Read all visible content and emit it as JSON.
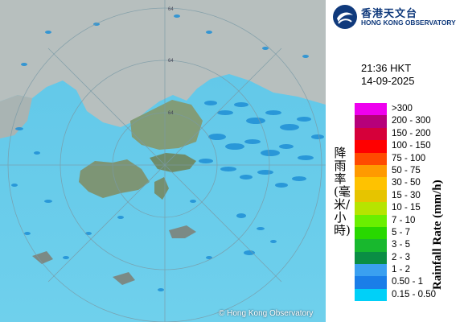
{
  "organization": {
    "name_zh": "香港天文台",
    "name_en": "HONG KONG OBSERVATORY"
  },
  "time": "21:36 HKT",
  "date": "14-09-2025",
  "title_zh": "降雨率(毫米/小時)",
  "title_en": "Rainfall Rate (mm/h)",
  "credit": "© Hong Kong Observatory",
  "range_labels": [
    "64",
    "64",
    "64"
  ],
  "legend": [
    {
      "label": ">300",
      "color": "#ee00ee"
    },
    {
      "label": "200 - 300",
      "color": "#b6007a"
    },
    {
      "label": "150 - 200",
      "color": "#d6003a"
    },
    {
      "label": "100 - 150",
      "color": "#ff0000"
    },
    {
      "label": "75 - 100",
      "color": "#ff4a00"
    },
    {
      "label": "50 - 75",
      "color": "#ff9a00"
    },
    {
      "label": "30 - 50",
      "color": "#ffc200"
    },
    {
      "label": "15 - 30",
      "color": "#e6c400"
    },
    {
      "label": "10 - 15",
      "color": "#b6e400"
    },
    {
      "label": "7 - 10",
      "color": "#6aef00"
    },
    {
      "label": "5 - 7",
      "color": "#28d800"
    },
    {
      "label": "3 - 5",
      "color": "#18b82e"
    },
    {
      "label": "2 - 3",
      "color": "#0a8e44"
    },
    {
      "label": "1 - 2",
      "color": "#3aa0f0"
    },
    {
      "label": "0.50 - 1",
      "color": "#1a7ee8"
    },
    {
      "label": "0.15 - 0.50",
      "color": "#00d0f8"
    }
  ]
}
